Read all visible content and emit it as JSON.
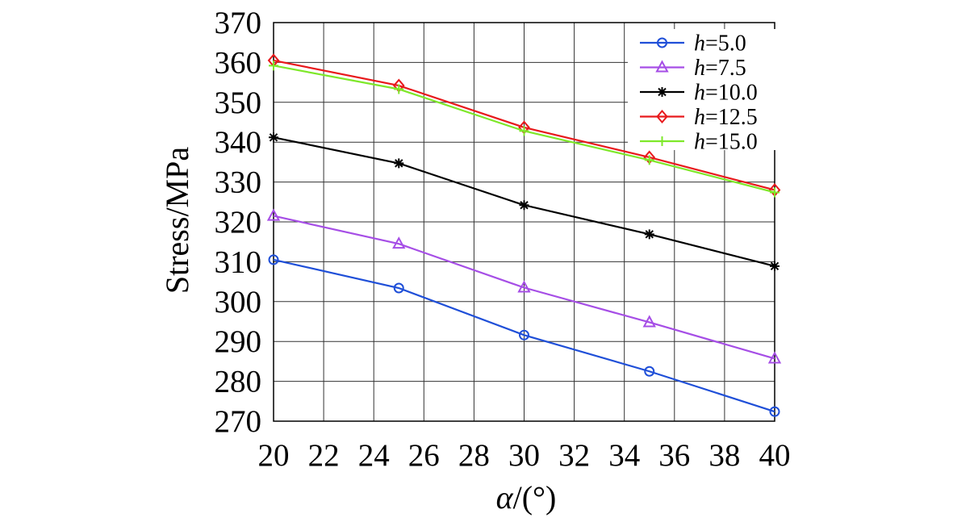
{
  "chart_data": {
    "type": "line",
    "title": "",
    "xlabel_var": "α",
    "xlabel_unit": "/(°)",
    "ylabel": "Stress/MPa",
    "xlim": [
      20,
      40
    ],
    "ylim": [
      270,
      370
    ],
    "xticks": [
      20,
      22,
      24,
      26,
      28,
      30,
      32,
      34,
      36,
      38,
      40
    ],
    "yticks": [
      270,
      280,
      290,
      300,
      310,
      320,
      330,
      340,
      350,
      360,
      370
    ],
    "grid": true,
    "legend_position": "top-right",
    "x": [
      20,
      25,
      30,
      35,
      40
    ],
    "series": [
      {
        "name_var": "h",
        "name_value": "=5.0",
        "color": "#1f4fd8",
        "marker": "circle",
        "values": [
          310.5,
          303.4,
          291.6,
          282.5,
          272.4
        ]
      },
      {
        "name_var": "h",
        "name_value": "=7.5",
        "color": "#a64ee6",
        "marker": "triangle",
        "values": [
          321.5,
          314.5,
          303.5,
          294.8,
          285.7
        ]
      },
      {
        "name_var": "h",
        "name_value": "=10.0",
        "color": "#000000",
        "marker": "asterisk",
        "values": [
          341.2,
          334.7,
          324.2,
          316.9,
          308.9
        ]
      },
      {
        "name_var": "h",
        "name_value": "=12.5",
        "color": "#e8191c",
        "marker": "diamond",
        "values": [
          360.5,
          354.2,
          343.7,
          336.2,
          328.0
        ]
      },
      {
        "name_var": "h",
        "name_value": "=15.0",
        "color": "#7ee82a",
        "marker": "plus",
        "values": [
          359.2,
          353.3,
          342.8,
          335.5,
          327.4
        ]
      }
    ]
  }
}
